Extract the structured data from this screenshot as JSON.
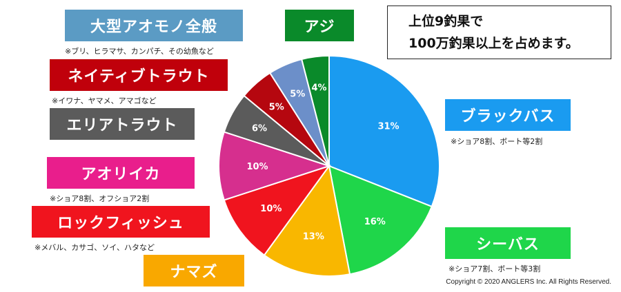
{
  "chart_data": {
    "type": "pie",
    "slices": [
      {
        "name": "ブラックバス",
        "value": 31,
        "label": "31%",
        "color": "#1a9bf0"
      },
      {
        "name": "シーバス",
        "value": 16,
        "label": "16%",
        "color": "#1fd64a"
      },
      {
        "name": "ナマズ",
        "value": 13,
        "label": "13%",
        "color": "#f9b700"
      },
      {
        "name": "ロックフィッシュ",
        "value": 10,
        "label": "10%",
        "color": "#f0141e"
      },
      {
        "name": "アオリイカ",
        "value": 10,
        "label": "10%",
        "color": "#d62f8e"
      },
      {
        "name": "エリアトラウト",
        "value": 6,
        "label": "6%",
        "color": "#5b5b5b"
      },
      {
        "name": "ネイティブトラウト",
        "value": 5,
        "label": "5%",
        "color": "#b5070f"
      },
      {
        "name": "大型アオモノ全般",
        "value": 5,
        "label": "5%",
        "color": "#6c8fc9"
      },
      {
        "name": "アジ",
        "value": 4,
        "label": "4%",
        "color": "#0a8a2a"
      }
    ]
  },
  "labels": {
    "aomono": {
      "text": "大型アオモノ全般",
      "note": "※ブリ、ヒラマサ、カンパチ、その幼魚など",
      "color": "#5b9bc4"
    },
    "aji": {
      "text": "アジ",
      "color": "#0a8a2a"
    },
    "native_trout": {
      "text": "ネイティブトラウト",
      "note": "※イワナ、ヤマメ、アマゴなど",
      "color": "#c0000b"
    },
    "area_trout": {
      "text": "エリアトラウト",
      "color": "#5b5b5b"
    },
    "aori": {
      "text": "アオリイカ",
      "note": "※ショア8割、オフショア2割",
      "color": "#e91e8c"
    },
    "rock": {
      "text": "ロックフィッシュ",
      "note": "※メバル、カサゴ、ソイ、ハタなど",
      "color": "#f0141e"
    },
    "namazu": {
      "text": "ナマズ",
      "color": "#f9a800"
    },
    "black_bass": {
      "text": "ブラックバス",
      "note": "※ショア8割、ボート等2割",
      "color": "#1a9bf0"
    },
    "seabass": {
      "text": "シーバス",
      "note": "※ショア7割、ボート等3割",
      "color": "#1fd64a"
    }
  },
  "infobox": {
    "line1": "上位9釣果で",
    "line2": "100万釣果以上を占めます。"
  },
  "copyright": "Copyright © 2020 ANGLERS Inc. All Rights Reserved."
}
